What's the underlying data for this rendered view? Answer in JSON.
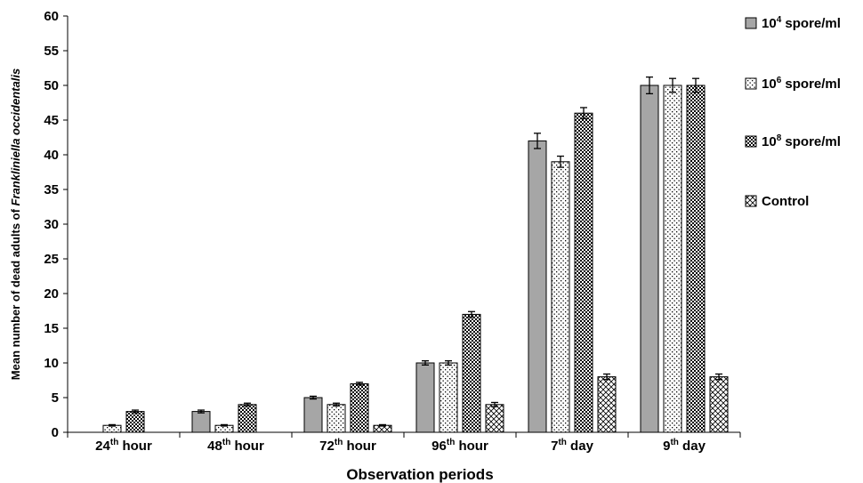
{
  "chart_data": {
    "type": "bar",
    "categories": [
      {
        "base": "24",
        "sup": "th",
        "rest": " hour"
      },
      {
        "base": "48",
        "sup": "th",
        "rest": " hour"
      },
      {
        "base": "72",
        "sup": "th",
        "rest": " hour"
      },
      {
        "base": "96",
        "sup": "th",
        "rest": " hour"
      },
      {
        "base": "7",
        "sup": "th",
        "rest": " day"
      },
      {
        "base": "9",
        "sup": "th",
        "rest": " day"
      }
    ],
    "series": [
      {
        "name": {
          "base": "10",
          "sup": "4",
          "rest": " spore/ml"
        },
        "pattern": "solid-gray",
        "values": [
          0,
          3,
          5,
          10,
          42,
          50
        ],
        "errors": [
          0,
          0.2,
          0.2,
          0.3,
          1.1,
          1.2
        ]
      },
      {
        "name": {
          "base": "10",
          "sup": "6",
          "rest": " spore/ml"
        },
        "pattern": "light-dots",
        "values": [
          1,
          1,
          4,
          10,
          39,
          50
        ],
        "errors": [
          0.1,
          0.1,
          0.2,
          0.3,
          0.8,
          1.0
        ]
      },
      {
        "name": {
          "base": "10",
          "sup": "8",
          "rest": " spore/ml"
        },
        "pattern": "dense-dots",
        "values": [
          3,
          4,
          7,
          17,
          46,
          50
        ],
        "errors": [
          0.2,
          0.2,
          0.2,
          0.4,
          0.8,
          1.0
        ]
      },
      {
        "name": {
          "base": "Control",
          "sup": "",
          "rest": ""
        },
        "pattern": "crosshatch",
        "values": [
          0,
          0,
          1,
          4,
          8,
          8
        ],
        "errors": [
          0,
          0,
          0.1,
          0.3,
          0.4,
          0.4
        ]
      }
    ],
    "xlabel": "Observation periods",
    "ylabel": {
      "before": "Mean number of dead adults of ",
      "italic": "Frankliniella occidentalis"
    },
    "ylim": [
      0,
      60
    ],
    "yticks": [
      0,
      5,
      10,
      15,
      20,
      25,
      30,
      35,
      40,
      45,
      50,
      55,
      60
    ],
    "grid": false,
    "legend_position": "right",
    "colors": {
      "bar_stroke": "#000000",
      "solid_fill": "#a6a6a6",
      "pattern_ink": "#000000"
    }
  }
}
